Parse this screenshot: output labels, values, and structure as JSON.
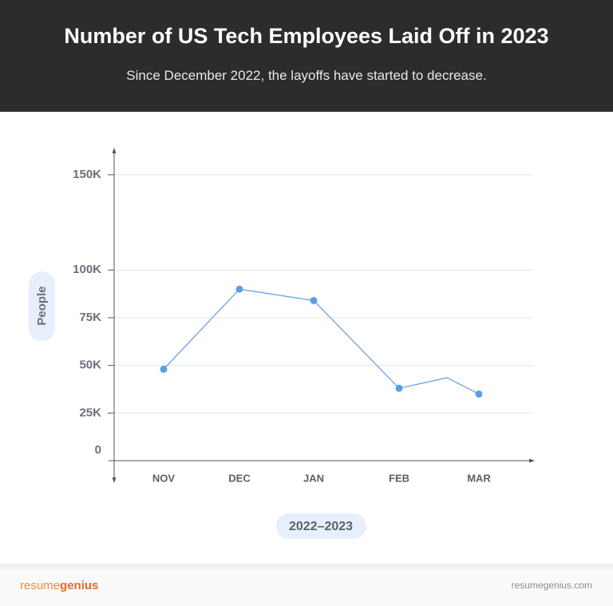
{
  "chart_data": {
    "type": "line",
    "title": "Number of US Tech Employees Laid Off in 2023",
    "subtitle": "Since December 2022, the layoffs have started to decrease.",
    "x_label": "2022–2023",
    "y_label": "People",
    "categories": [
      "NOV",
      "DEC",
      "JAN",
      "FEB",
      null,
      "MAR"
    ],
    "values": [
      48000,
      90000,
      84000,
      38000,
      43500,
      35000
    ],
    "color": "#5b9ee8",
    "ylim": [
      0,
      160000
    ],
    "yticks": [
      0,
      {
        "value": 25000,
        "label": "25K"
      },
      {
        "value": 50000,
        "label": "50K"
      },
      {
        "value": 75000,
        "label": "75K"
      },
      {
        "value": 100000,
        "label": "100K"
      },
      {
        "value": 150000,
        "label": "150K"
      }
    ],
    "grid": true
  },
  "footer": {
    "brand": [
      "resume",
      "genius"
    ],
    "url": "resumegenius.com"
  }
}
